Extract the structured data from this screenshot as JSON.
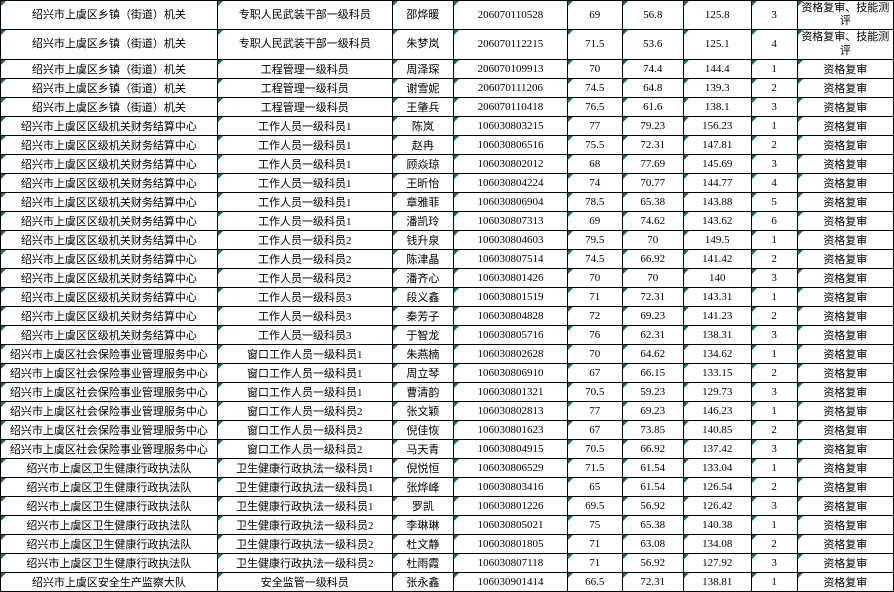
{
  "columns": [
    "c0",
    "c1",
    "c2",
    "c3",
    "c4",
    "c5",
    "c6",
    "c7",
    "c8"
  ],
  "rows": [
    {
      "tall": true,
      "cells": [
        "绍兴市上虞区乡镇（街道）机关",
        "专职人民武装干部一级科员",
        "邵烨暖",
        "206070110528",
        "69",
        "56.8",
        "125.8",
        "3",
        "资格复审、技能测评"
      ]
    },
    {
      "tall": true,
      "cells": [
        "绍兴市上虞区乡镇（街道）机关",
        "专职人民武装干部一级科员",
        "朱梦岚",
        "206070112215",
        "71.5",
        "53.6",
        "125.1",
        "4",
        "资格复审、技能测评"
      ]
    },
    {
      "cells": [
        "绍兴市上虞区乡镇（街道）机关",
        "工程管理一级科员",
        "周泽琛",
        "206070109913",
        "70",
        "74.4",
        "144.4",
        "1",
        "资格复审"
      ]
    },
    {
      "cells": [
        "绍兴市上虞区乡镇（街道）机关",
        "工程管理一级科员",
        "谢雪妮",
        "206070111206",
        "74.5",
        "64.8",
        "139.3",
        "2",
        "资格复审"
      ]
    },
    {
      "cells": [
        "绍兴市上虞区乡镇（街道）机关",
        "工程管理一级科员",
        "王肇兵",
        "206070110418",
        "76.5",
        "61.6",
        "138.1",
        "3",
        "资格复审"
      ]
    },
    {
      "cells": [
        "绍兴市上虞区区级机关财务结算中心",
        "工作人员一级科员1",
        "陈岚",
        "106030803215",
        "77",
        "79.23",
        "156.23",
        "1",
        "资格复审"
      ]
    },
    {
      "cells": [
        "绍兴市上虞区区级机关财务结算中心",
        "工作人员一级科员1",
        "赵冉",
        "106030806516",
        "75.5",
        "72.31",
        "147.81",
        "2",
        "资格复审"
      ]
    },
    {
      "cells": [
        "绍兴市上虞区区级机关财务结算中心",
        "工作人员一级科员1",
        "顾焱琼",
        "106030802012",
        "68",
        "77.69",
        "145.69",
        "3",
        "资格复审"
      ]
    },
    {
      "cells": [
        "绍兴市上虞区区级机关财务结算中心",
        "工作人员一级科员1",
        "王昕怡",
        "106030804224",
        "74",
        "70.77",
        "144.77",
        "4",
        "资格复审"
      ]
    },
    {
      "cells": [
        "绍兴市上虞区区级机关财务结算中心",
        "工作人员一级科员1",
        "章雅菲",
        "106030806904",
        "78.5",
        "65.38",
        "143.88",
        "5",
        "资格复审"
      ]
    },
    {
      "cells": [
        "绍兴市上虞区区级机关财务结算中心",
        "工作人员一级科员1",
        "潘凯玲",
        "106030807313",
        "69",
        "74.62",
        "143.62",
        "6",
        "资格复审"
      ]
    },
    {
      "cells": [
        "绍兴市上虞区区级机关财务结算中心",
        "工作人员一级科员2",
        "钱升泉",
        "106030804603",
        "79.5",
        "70",
        "149.5",
        "1",
        "资格复审"
      ]
    },
    {
      "cells": [
        "绍兴市上虞区区级机关财务结算中心",
        "工作人员一级科员2",
        "陈津晶",
        "106030807514",
        "74.5",
        "66.92",
        "141.42",
        "2",
        "资格复审"
      ]
    },
    {
      "cells": [
        "绍兴市上虞区区级机关财务结算中心",
        "工作人员一级科员2",
        "潘齐心",
        "106030801426",
        "70",
        "70",
        "140",
        "3",
        "资格复审"
      ]
    },
    {
      "cells": [
        "绍兴市上虞区区级机关财务结算中心",
        "工作人员一级科员3",
        "段义鑫",
        "106030801519",
        "71",
        "72.31",
        "143.31",
        "1",
        "资格复审"
      ]
    },
    {
      "cells": [
        "绍兴市上虞区区级机关财务结算中心",
        "工作人员一级科员3",
        "秦芳子",
        "106030804828",
        "72",
        "69.23",
        "141.23",
        "2",
        "资格复审"
      ]
    },
    {
      "cells": [
        "绍兴市上虞区区级机关财务结算中心",
        "工作人员一级科员3",
        "于智龙",
        "106030805716",
        "76",
        "62.31",
        "138.31",
        "3",
        "资格复审"
      ]
    },
    {
      "cells": [
        "绍兴市上虞区社会保险事业管理服务中心",
        "窗口工作人员一级科员1",
        "朱燕楠",
        "106030802628",
        "70",
        "64.62",
        "134.62",
        "1",
        "资格复审"
      ]
    },
    {
      "cells": [
        "绍兴市上虞区社会保险事业管理服务中心",
        "窗口工作人员一级科员1",
        "周立琴",
        "106030806910",
        "67",
        "66.15",
        "133.15",
        "2",
        "资格复审"
      ]
    },
    {
      "cells": [
        "绍兴市上虞区社会保险事业管理服务中心",
        "窗口工作人员一级科员1",
        "曹清韵",
        "106030801321",
        "70.5",
        "59.23",
        "129.73",
        "3",
        "资格复审"
      ]
    },
    {
      "cells": [
        "绍兴市上虞区社会保险事业管理服务中心",
        "窗口工作人员一级科员2",
        "张文颖",
        "106030802813",
        "77",
        "69.23",
        "146.23",
        "1",
        "资格复审"
      ]
    },
    {
      "cells": [
        "绍兴市上虞区社会保险事业管理服务中心",
        "窗口工作人员一级科员2",
        "倪佳恢",
        "106030801623",
        "67",
        "73.85",
        "140.85",
        "2",
        "资格复审"
      ]
    },
    {
      "cells": [
        "绍兴市上虞区社会保险事业管理服务中心",
        "窗口工作人员一级科员2",
        "马天青",
        "106030804915",
        "70.5",
        "66.92",
        "137.42",
        "3",
        "资格复审"
      ]
    },
    {
      "cells": [
        "绍兴市上虞区卫生健康行政执法队",
        "卫生健康行政执法一级科员1",
        "倪悦恒",
        "106030806529",
        "71.5",
        "61.54",
        "133.04",
        "1",
        "资格复审"
      ]
    },
    {
      "cells": [
        "绍兴市上虞区卫生健康行政执法队",
        "卫生健康行政执法一级科员1",
        "张烨峰",
        "106030803416",
        "65",
        "61.54",
        "126.54",
        "2",
        "资格复审"
      ]
    },
    {
      "cells": [
        "绍兴市上虞区卫生健康行政执法队",
        "卫生健康行政执法一级科员1",
        "罗凯",
        "106030801226",
        "69.5",
        "56.92",
        "126.42",
        "3",
        "资格复审"
      ]
    },
    {
      "cells": [
        "绍兴市上虞区卫生健康行政执法队",
        "卫生健康行政执法一级科员2",
        "李琳琳",
        "106030805021",
        "75",
        "65.38",
        "140.38",
        "1",
        "资格复审"
      ]
    },
    {
      "cells": [
        "绍兴市上虞区卫生健康行政执法队",
        "卫生健康行政执法一级科员2",
        "杜文静",
        "106030801805",
        "71",
        "63.08",
        "134.08",
        "2",
        "资格复审"
      ]
    },
    {
      "cells": [
        "绍兴市上虞区卫生健康行政执法队",
        "卫生健康行政执法一级科员2",
        "杜雨霞",
        "106030807118",
        "71",
        "56.92",
        "127.92",
        "3",
        "资格复审"
      ]
    },
    {
      "cells": [
        "绍兴市上虞区安全生产监察大队",
        "安全监管一级科员",
        "张永鑫",
        "106030901414",
        "66.5",
        "72.31",
        "138.81",
        "1",
        "资格复审"
      ]
    }
  ]
}
